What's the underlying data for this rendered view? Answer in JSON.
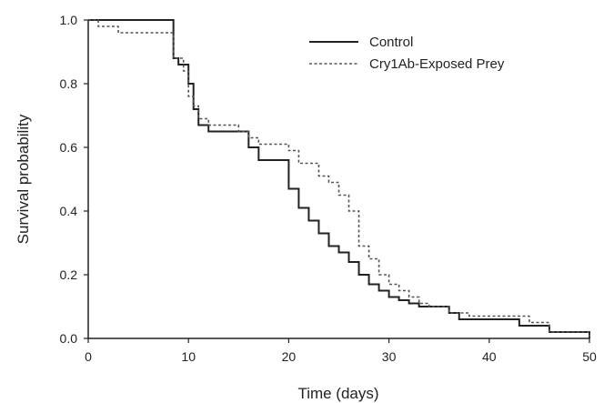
{
  "chart_data": {
    "type": "line",
    "step": "post",
    "title": "",
    "xlabel": "Time (days)",
    "ylabel": "Survival probability",
    "xlim": [
      0,
      50
    ],
    "ylim": [
      0.0,
      1.0
    ],
    "x_ticks": [
      0,
      10,
      20,
      30,
      40,
      50
    ],
    "y_ticks": [
      "0.0",
      "0.2",
      "0.4",
      "0.6",
      "0.8",
      "1.0"
    ],
    "grid": false,
    "legend_position": "top-right",
    "series": [
      {
        "name": "Control",
        "style": "solid",
        "color": "#222222",
        "x": [
          0,
          8,
          8.5,
          9,
          10,
          10.5,
          11,
          12,
          15,
          16,
          17,
          19,
          20,
          21,
          22,
          23,
          24,
          25,
          26,
          27,
          28,
          29,
          30,
          31,
          32,
          33,
          34,
          36,
          37,
          43,
          46,
          50
        ],
        "y": [
          1.0,
          1.0,
          0.88,
          0.86,
          0.8,
          0.72,
          0.67,
          0.65,
          0.65,
          0.6,
          0.56,
          0.56,
          0.47,
          0.41,
          0.37,
          0.33,
          0.29,
          0.27,
          0.24,
          0.2,
          0.17,
          0.15,
          0.13,
          0.12,
          0.11,
          0.1,
          0.1,
          0.08,
          0.06,
          0.04,
          0.02,
          0.0
        ]
      },
      {
        "name": "Cry1Ab-Exposed Prey",
        "style": "dashed",
        "color": "#555555",
        "x": [
          0,
          1,
          3,
          8,
          8.5,
          9.5,
          10,
          10.5,
          11,
          12,
          15,
          16,
          17,
          20,
          21,
          23,
          24,
          25,
          26,
          27,
          28,
          29,
          30,
          31,
          32,
          33,
          34,
          36,
          38,
          44,
          46,
          50
        ],
        "y": [
          1.0,
          0.98,
          0.96,
          0.96,
          0.88,
          0.84,
          0.76,
          0.73,
          0.69,
          0.67,
          0.65,
          0.63,
          0.61,
          0.59,
          0.55,
          0.51,
          0.49,
          0.45,
          0.4,
          0.29,
          0.25,
          0.2,
          0.17,
          0.15,
          0.13,
          0.11,
          0.1,
          0.08,
          0.07,
          0.05,
          0.02,
          0.0
        ]
      }
    ]
  }
}
